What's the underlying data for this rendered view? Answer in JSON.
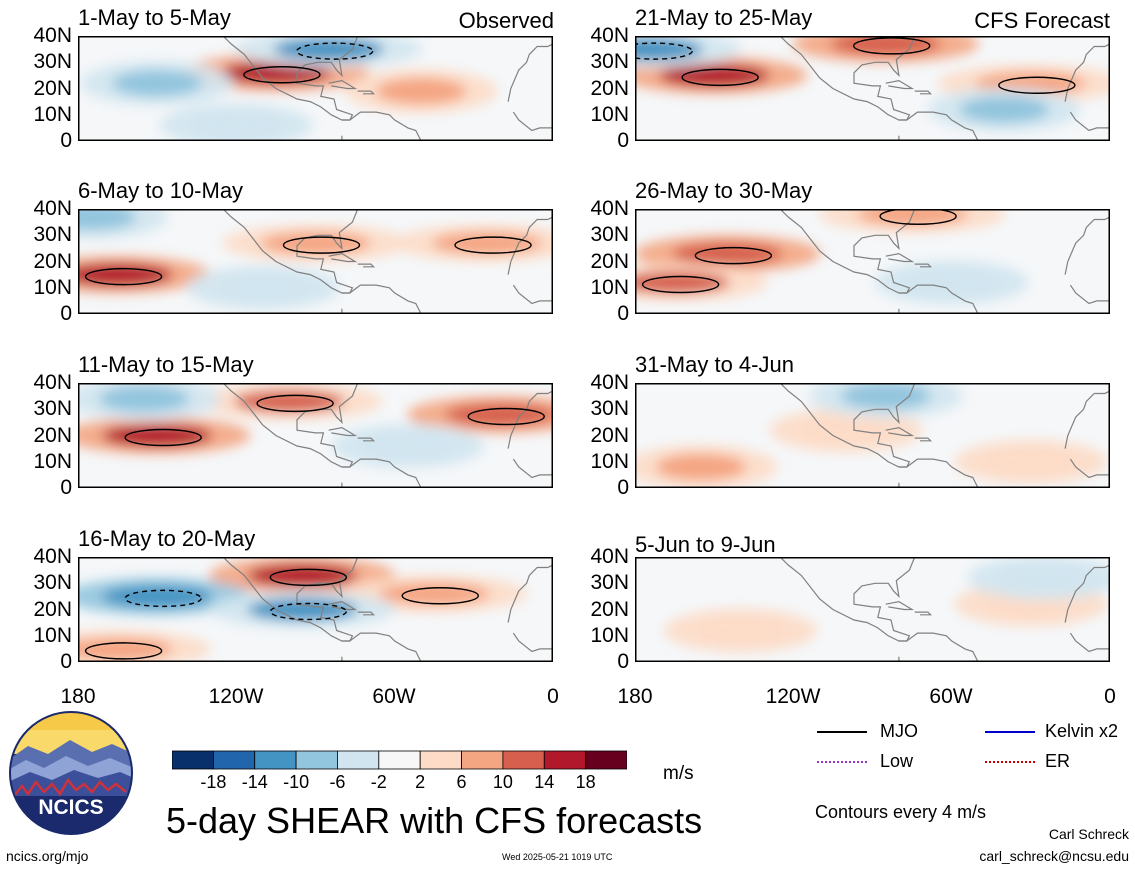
{
  "chart_data": {
    "type": "heatmap",
    "title": "5-day SHEAR with CFS forecasts",
    "units": "m/s",
    "x_ticks": [
      "180",
      "120W",
      "60W",
      "0"
    ],
    "y_ticks": [
      "40N",
      "30N",
      "20N",
      "10N",
      "0"
    ],
    "xlim": [
      -180,
      0
    ],
    "ylim": [
      0,
      40
    ],
    "columns": [
      {
        "label": "Observed",
        "panels": [
          {
            "period": "1-May to 5-May",
            "anomalies": [
              {
                "lon": -105,
                "lat": 26,
                "value": 16
              },
              {
                "lon": -50,
                "lat": 19,
                "value": 8
              },
              {
                "lon": -85,
                "lat": 35,
                "value": -10
              },
              {
                "lon": -150,
                "lat": 22,
                "value": -8
              },
              {
                "lon": -120,
                "lat": 6,
                "value": -4
              }
            ]
          },
          {
            "period": "6-May to 10-May",
            "anomalies": [
              {
                "lon": -165,
                "lat": 15,
                "value": 16
              },
              {
                "lon": -90,
                "lat": 27,
                "value": 10
              },
              {
                "lon": -25,
                "lat": 27,
                "value": 10
              },
              {
                "lon": -175,
                "lat": 37,
                "value": -8
              },
              {
                "lon": -110,
                "lat": 10,
                "value": -4
              }
            ]
          },
          {
            "period": "11-May to 15-May",
            "anomalies": [
              {
                "lon": -150,
                "lat": 20,
                "value": 16
              },
              {
                "lon": -100,
                "lat": 33,
                "value": 12
              },
              {
                "lon": -20,
                "lat": 28,
                "value": 14
              },
              {
                "lon": -155,
                "lat": 34,
                "value": -8
              },
              {
                "lon": -55,
                "lat": 16,
                "value": -4
              }
            ]
          },
          {
            "period": "16-May to 20-May",
            "anomalies": [
              {
                "lon": -95,
                "lat": 33,
                "value": 16
              },
              {
                "lon": -45,
                "lat": 26,
                "value": 10
              },
              {
                "lon": -150,
                "lat": 25,
                "value": -12
              },
              {
                "lon": -95,
                "lat": 20,
                "value": -10
              },
              {
                "lon": -165,
                "lat": 5,
                "value": 10
              }
            ]
          }
        ]
      },
      {
        "label": "CFS Forecast",
        "panels": [
          {
            "period": "21-May to 25-May",
            "anomalies": [
              {
                "lon": -150,
                "lat": 25,
                "value": 16
              },
              {
                "lon": -85,
                "lat": 37,
                "value": 14
              },
              {
                "lon": -30,
                "lat": 22,
                "value": 10
              },
              {
                "lon": -175,
                "lat": 35,
                "value": -10
              },
              {
                "lon": -40,
                "lat": 12,
                "value": -6
              }
            ]
          },
          {
            "period": "26-May to 30-May",
            "anomalies": [
              {
                "lon": -145,
                "lat": 23,
                "value": 14
              },
              {
                "lon": -165,
                "lat": 12,
                "value": 12
              },
              {
                "lon": -75,
                "lat": 38,
                "value": 10
              },
              {
                "lon": -60,
                "lat": 12,
                "value": -4
              }
            ]
          },
          {
            "period": "31-May to 4-Jun",
            "anomalies": [
              {
                "lon": -155,
                "lat": 8,
                "value": 8
              },
              {
                "lon": -100,
                "lat": 22,
                "value": 6
              },
              {
                "lon": -85,
                "lat": 35,
                "value": -6
              },
              {
                "lon": -30,
                "lat": 10,
                "value": 6
              }
            ]
          },
          {
            "period": "5-Jun to 9-Jun",
            "anomalies": [
              {
                "lon": -140,
                "lat": 12,
                "value": 6
              },
              {
                "lon": -30,
                "lat": 22,
                "value": 4
              },
              {
                "lon": -25,
                "lat": 32,
                "value": -4
              }
            ]
          }
        ]
      }
    ],
    "colorbar": {
      "labels": [
        "-18",
        "-14",
        "-10",
        "-6",
        "-2",
        "2",
        "6",
        "10",
        "14",
        "18"
      ],
      "colors": [
        "#08306b",
        "#2166ac",
        "#4393c3",
        "#92c5de",
        "#d1e5f0",
        "#f7f7f7",
        "#fddbc7",
        "#f4a582",
        "#d6604d",
        "#b2182b",
        "#67001f"
      ]
    },
    "legend": {
      "items": [
        {
          "label": "MJO",
          "color": "#000000"
        },
        {
          "label": "Kelvin x2",
          "color": "#0000cc"
        },
        {
          "label": "Low",
          "color": "#9933cc"
        },
        {
          "label": "ER",
          "color": "#cc0000"
        }
      ]
    },
    "contour_note": "Contours every 4 m/s"
  },
  "logo": {
    "text": "NCICS"
  },
  "footer": {
    "site": "ncics.org/mjo",
    "timestamp": "Wed 2025-05-21 1019 UTC",
    "author": "Carl Schreck",
    "email": "carl_schreck@ncsu.edu"
  },
  "colors": {
    "land": "#808080",
    "contour": "#000000",
    "frame": "#000000"
  }
}
